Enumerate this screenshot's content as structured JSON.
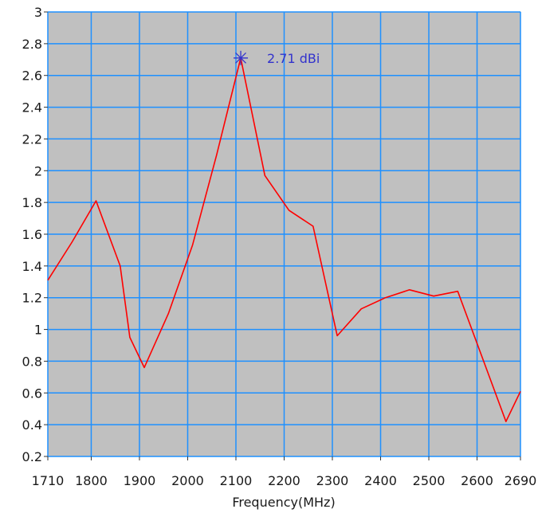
{
  "chart_data": {
    "type": "line",
    "xlabel": "Frequency(MHz)",
    "ylabel": "",
    "xlim": [
      1710,
      2690
    ],
    "ylim": [
      0.2,
      3
    ],
    "x_ticks": [
      "1710",
      "1800",
      "1900",
      "2000",
      "2100",
      "2200",
      "2300",
      "2400",
      "2500",
      "2600",
      "2690"
    ],
    "y_ticks": [
      "0.2",
      "0.4",
      "0.6",
      "0.8",
      "1",
      "1.2",
      "1.4",
      "1.6",
      "1.8",
      "2",
      "2.2",
      "2.4",
      "2.6",
      "2.8",
      "3"
    ],
    "grid": true,
    "series": [
      {
        "color": "#ff0000",
        "x": [
          1710,
          1760,
          1810,
          1860,
          1880,
          1910,
          1960,
          2010,
          2060,
          2110,
          2160,
          2210,
          2260,
          2310,
          2360,
          2410,
          2460,
          2510,
          2560,
          2610,
          2660,
          2690
        ],
        "y": [
          1.31,
          1.55,
          1.81,
          1.4,
          0.95,
          0.76,
          1.1,
          1.53,
          2.1,
          2.71,
          1.97,
          1.75,
          1.65,
          0.96,
          1.13,
          1.2,
          1.25,
          1.21,
          1.24,
          0.83,
          0.42,
          0.61
        ]
      }
    ],
    "annotations": [
      {
        "x": 2110,
        "y": 2.71,
        "text": "2.71 dBi",
        "color": "#3333cc"
      }
    ]
  },
  "style": {
    "plot_background": "#c0c0c0",
    "grid_color": "#1e90ff",
    "frame_color": "#9a9a9a"
  }
}
